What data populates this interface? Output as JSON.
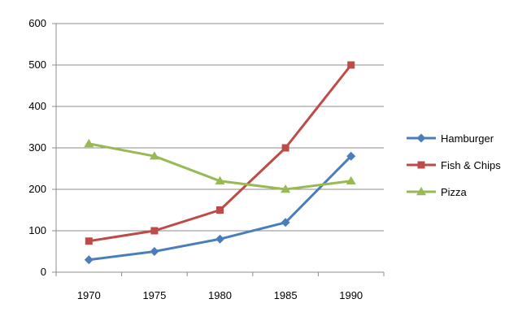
{
  "chart_data": {
    "type": "line",
    "categories": [
      "1970",
      "1975",
      "1980",
      "1985",
      "1990"
    ],
    "series": [
      {
        "name": "Hamburger",
        "values": [
          30,
          50,
          80,
          120,
          280
        ],
        "color": "#4a7ebb",
        "marker": "diamond"
      },
      {
        "name": "Fish & Chips",
        "values": [
          75,
          100,
          150,
          300,
          500
        ],
        "color": "#be4b48",
        "marker": "square"
      },
      {
        "name": "Pizza",
        "values": [
          310,
          280,
          220,
          200,
          220
        ],
        "color": "#98b954",
        "marker": "triangle"
      }
    ],
    "y_ticks": [
      "0",
      "100",
      "200",
      "300",
      "400",
      "500",
      "600"
    ],
    "ylim": [
      0,
      600
    ],
    "grid": "horizontal",
    "legend_position": "right"
  }
}
